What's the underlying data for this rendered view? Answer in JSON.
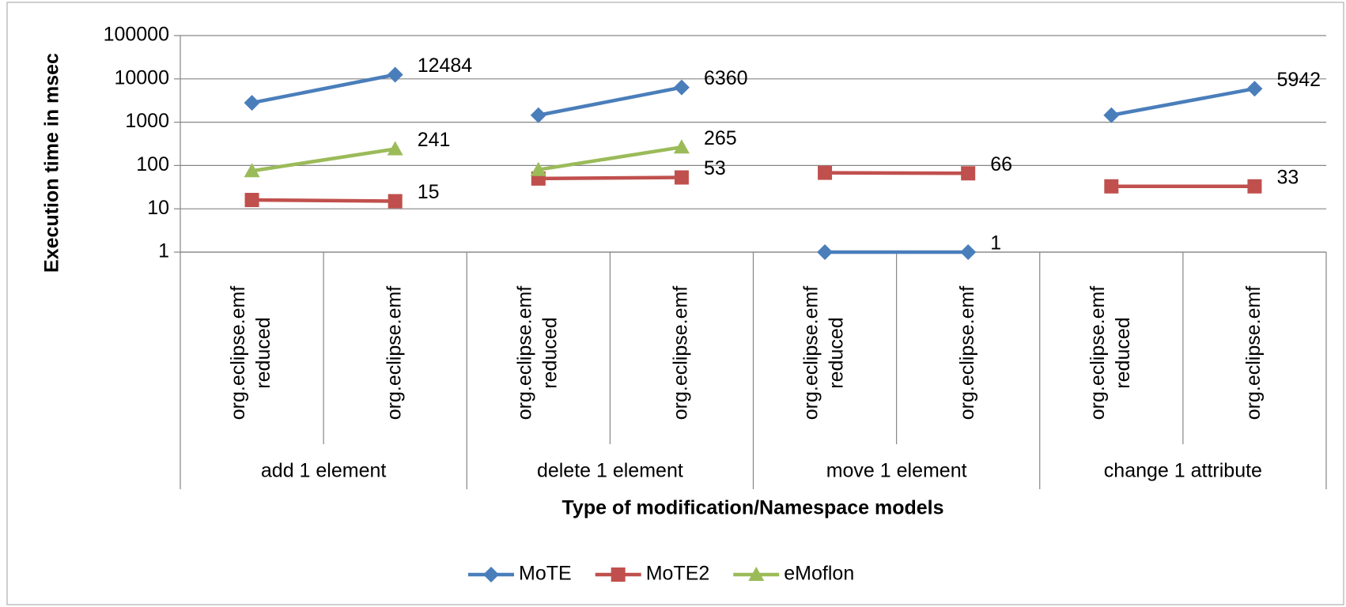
{
  "chart_data": {
    "type": "line",
    "y_label": "Execution time in msec",
    "x_label": "Type of modification/Namespace models",
    "categories": [
      [
        "org.eclipse.emf",
        "reduced"
      ],
      [
        "org.eclipse.emf"
      ],
      [
        "org.eclipse.emf",
        "reduced"
      ],
      [
        "org.eclipse.emf"
      ],
      [
        "org.eclipse.emf",
        "reduced"
      ],
      [
        "org.eclipse.emf"
      ],
      [
        "org.eclipse.emf",
        "reduced"
      ],
      [
        "org.eclipse.emf"
      ]
    ],
    "groups": [
      "add 1 element",
      "delete 1 element",
      "move 1 element",
      "change 1 attribute"
    ],
    "series": [
      {
        "name": "MoTE",
        "color": "#4a7ebb",
        "marker": "diamond",
        "values": [
          2800,
          12484,
          1450,
          6360,
          1,
          1,
          1450,
          5942
        ],
        "value_labels": [
          null,
          "12484",
          null,
          "6360",
          null,
          "1",
          null,
          "5942"
        ]
      },
      {
        "name": "MoTE2",
        "color": "#c0504d",
        "marker": "square",
        "values": [
          16,
          15,
          50,
          53,
          68,
          66,
          33,
          33
        ],
        "value_labels": [
          null,
          "15",
          null,
          "53",
          null,
          "66",
          null,
          "33"
        ]
      },
      {
        "name": "eMoflon",
        "color": "#9bbb59",
        "marker": "triangle",
        "values": [
          75,
          241,
          80,
          265,
          null,
          null,
          null,
          null
        ],
        "value_labels": [
          null,
          "241",
          null,
          "265",
          null,
          null,
          null,
          null
        ]
      }
    ],
    "log_y": true,
    "ylim": [
      1,
      100000
    ],
    "yticks": [
      1,
      10,
      100,
      1000,
      10000,
      100000
    ],
    "grid": true,
    "legend": "bottom"
  }
}
